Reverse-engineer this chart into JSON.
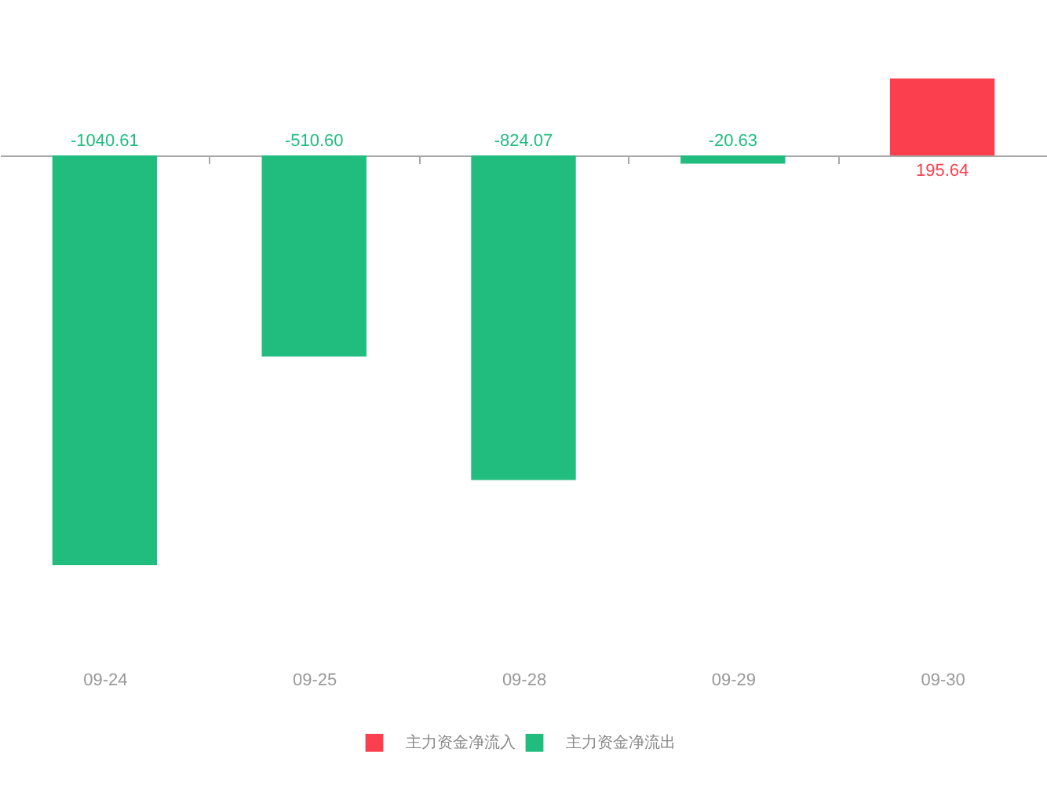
{
  "chart_data": {
    "type": "bar",
    "categories": [
      "09-24",
      "09-25",
      "09-28",
      "09-29",
      "09-30"
    ],
    "series": [
      {
        "name": "主力资金净流入",
        "color": "#fb3f4e",
        "values": [
          null,
          null,
          null,
          null,
          195.64
        ],
        "value_labels": [
          null,
          null,
          null,
          null,
          "195.64"
        ]
      },
      {
        "name": "主力资金净流出",
        "color": "#21bd7f",
        "values": [
          -1040.61,
          -510.6,
          -824.07,
          -20.63,
          null
        ],
        "value_labels": [
          "-1040.61",
          "-510.60",
          "-824.07",
          "-20.63",
          null
        ]
      }
    ],
    "stacked": true,
    "legend": "bottom",
    "tick_labels": "x"
  }
}
